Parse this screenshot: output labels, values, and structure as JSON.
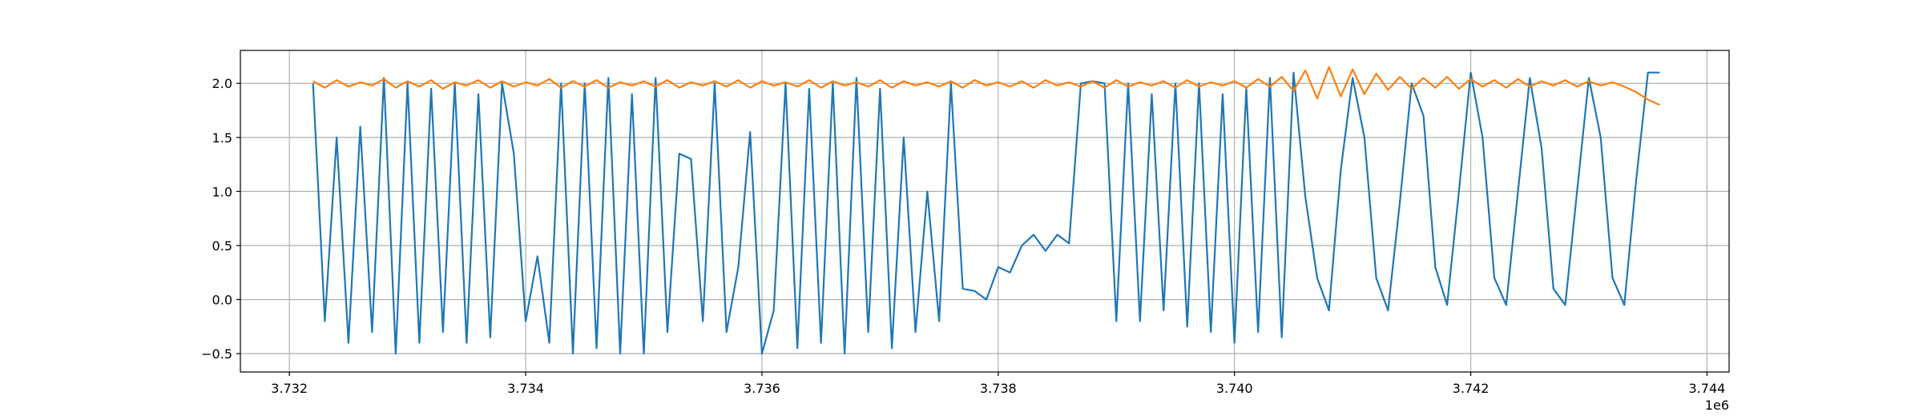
{
  "chart_data": {
    "type": "line",
    "x": [
      3732200,
      3732300,
      3732400,
      3732500,
      3732600,
      3732700,
      3732800,
      3732900,
      3733000,
      3733100,
      3733200,
      3733300,
      3733400,
      3733500,
      3733600,
      3733700,
      3733800,
      3733900,
      3734000,
      3734100,
      3734200,
      3734300,
      3734400,
      3734500,
      3734600,
      3734700,
      3734800,
      3734900,
      3735000,
      3735100,
      3735200,
      3735300,
      3735400,
      3735500,
      3735600,
      3735700,
      3735800,
      3735900,
      3736000,
      3736100,
      3736200,
      3736300,
      3736400,
      3736500,
      3736600,
      3736700,
      3736800,
      3736900,
      3737000,
      3737100,
      3737200,
      3737300,
      3737400,
      3737500,
      3737600,
      3737700,
      3737800,
      3737900,
      3738000,
      3738100,
      3738200,
      3738300,
      3738400,
      3738500,
      3738600,
      3738700,
      3738800,
      3738900,
      3739000,
      3739100,
      3739200,
      3739300,
      3739400,
      3739500,
      3739600,
      3739700,
      3739800,
      3739900,
      3740000,
      3740100,
      3740200,
      3740300,
      3740400,
      3740500,
      3740600,
      3740700,
      3740800,
      3740900,
      3741000,
      3741100,
      3741200,
      3741300,
      3741400,
      3741500,
      3741600,
      3741700,
      3741800,
      3741900,
      3742000,
      3742100,
      3742200,
      3742300,
      3742400,
      3742500,
      3742600,
      3742700,
      3742800,
      3742900,
      3743000,
      3743100,
      3743200,
      3743300,
      3743400,
      3743500,
      3743600
    ],
    "series": [
      {
        "color": "#1f77b4",
        "values": [
          2.0,
          -0.2,
          1.5,
          -0.4,
          1.6,
          -0.3,
          2.05,
          -0.5,
          2.0,
          -0.4,
          1.95,
          -0.3,
          2.0,
          -0.4,
          1.9,
          -0.35,
          2.0,
          1.35,
          -0.2,
          0.4,
          -0.4,
          2.0,
          -0.5,
          2.0,
          -0.45,
          2.05,
          -0.5,
          1.9,
          -0.5,
          2.05,
          -0.3,
          1.35,
          1.3,
          -0.2,
          2.0,
          -0.3,
          0.3,
          1.55,
          -0.5,
          -0.1,
          2.0,
          -0.45,
          1.95,
          -0.4,
          2.0,
          -0.5,
          2.05,
          -0.3,
          1.95,
          -0.45,
          1.5,
          -0.3,
          1.0,
          -0.2,
          2.0,
          0.1,
          0.08,
          0.0,
          0.3,
          0.25,
          0.5,
          0.6,
          0.45,
          0.6,
          0.52,
          2.0,
          2.02,
          2.0,
          -0.2,
          2.0,
          -0.2,
          1.9,
          -0.1,
          2.0,
          -0.25,
          2.0,
          -0.3,
          1.9,
          -0.4,
          1.95,
          -0.3,
          2.05,
          -0.35,
          2.1,
          0.95,
          0.2,
          -0.1,
          1.2,
          2.05,
          1.5,
          0.2,
          -0.1,
          0.9,
          2.0,
          1.7,
          0.3,
          -0.05,
          1.0,
          2.1,
          1.5,
          0.2,
          -0.05,
          1.0,
          2.05,
          1.4,
          0.1,
          -0.05,
          1.0,
          2.05,
          1.5,
          0.2,
          -0.05,
          1.1,
          2.1,
          2.1
        ]
      },
      {
        "color": "#ff7f0e",
        "values": [
          2.02,
          1.96,
          2.03,
          1.97,
          2.01,
          1.98,
          2.04,
          1.96,
          2.02,
          1.97,
          2.03,
          1.95,
          2.01,
          1.98,
          2.03,
          1.96,
          2.02,
          1.97,
          2.01,
          1.98,
          2.04,
          1.96,
          2.02,
          1.97,
          2.03,
          1.96,
          2.01,
          1.98,
          2.02,
          1.97,
          2.03,
          1.96,
          2.01,
          1.98,
          2.02,
          1.97,
          2.03,
          1.96,
          2.02,
          1.98,
          2.01,
          1.97,
          2.03,
          1.96,
          2.02,
          1.98,
          2.01,
          1.97,
          2.03,
          1.96,
          2.02,
          1.98,
          2.01,
          1.97,
          2.02,
          1.96,
          2.03,
          1.98,
          2.01,
          1.97,
          2.02,
          1.96,
          2.03,
          1.98,
          2.01,
          1.97,
          2.02,
          1.96,
          2.03,
          1.97,
          2.01,
          1.98,
          2.02,
          1.96,
          2.03,
          1.97,
          2.01,
          1.98,
          2.02,
          1.96,
          2.04,
          1.97,
          2.06,
          1.93,
          2.12,
          1.86,
          2.15,
          1.88,
          2.13,
          1.9,
          2.09,
          1.94,
          2.06,
          1.95,
          2.05,
          1.96,
          2.06,
          1.95,
          2.04,
          1.97,
          2.03,
          1.96,
          2.04,
          1.97,
          2.02,
          1.98,
          2.03,
          1.97,
          2.02,
          1.98,
          2.01,
          1.97,
          1.92,
          1.85,
          1.8
        ]
      }
    ],
    "xlim": [
      3731585,
      3744187
    ],
    "ylim": [
      -0.67,
      2.305
    ],
    "xticks": [
      {
        "value": 3732000,
        "label": "3.732"
      },
      {
        "value": 3734000,
        "label": "3.734"
      },
      {
        "value": 3736000,
        "label": "3.736"
      },
      {
        "value": 3738000,
        "label": "3.738"
      },
      {
        "value": 3740000,
        "label": "3.740"
      },
      {
        "value": 3742000,
        "label": "3.742"
      },
      {
        "value": 3744000,
        "label": "3.744"
      }
    ],
    "yticks": [
      {
        "value": -0.5,
        "label": "−0.5"
      },
      {
        "value": 0,
        "label": "0.0"
      },
      {
        "value": 0.5,
        "label": "0.5"
      },
      {
        "value": 1,
        "label": "1.0"
      },
      {
        "value": 1.5,
        "label": "1.5"
      },
      {
        "value": 2,
        "label": "2.0"
      }
    ],
    "x_offset_label": "1e6",
    "grid": true
  }
}
